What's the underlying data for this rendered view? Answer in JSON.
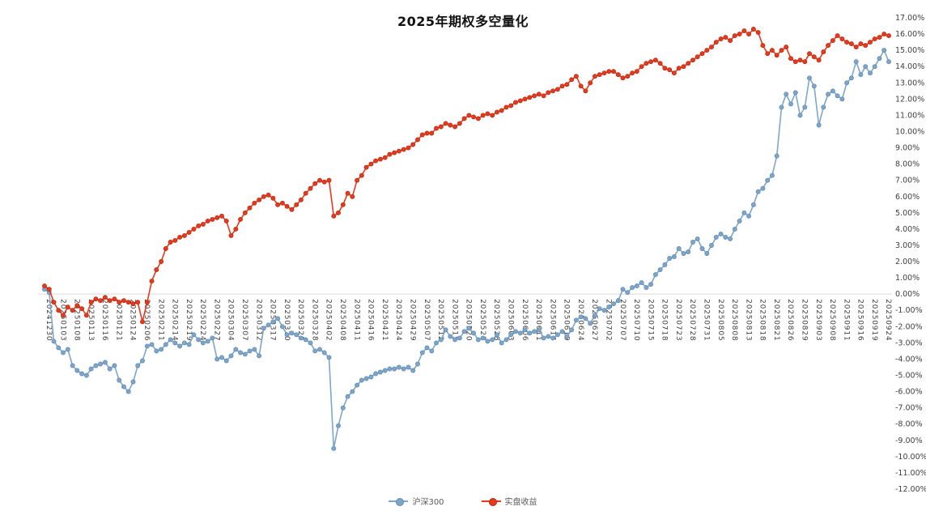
{
  "colors": {
    "background": "#ffffff",
    "title_text": "#111111",
    "axis_text": "#404040",
    "zero_line": "#d9d9d9",
    "legend_text": "#595959",
    "csi300_line": "#7ea6cb",
    "csi300_marker_stroke": "#5e87ac",
    "strategy_line": "#e8391d",
    "strategy_marker_stroke": "#b22a10"
  },
  "y_axis": {
    "labels": [
      "17.00%",
      "16.00%",
      "15.00%",
      "14.00%",
      "13.00%",
      "12.00%",
      "11.00%",
      "10.00%",
      "9.00%",
      "8.00%",
      "7.00%",
      "6.00%",
      "5.00%",
      "4.00%",
      "3.00%",
      "2.00%",
      "1.00%",
      "0.00%",
      "-1.00%",
      "-2.00%",
      "-3.00%",
      "-4.00%",
      "-5.00%",
      "-6.00%",
      "-7.00%",
      "-8.00%",
      "-9.00%",
      "-10.00%",
      "-11.00%",
      "-12.00%"
    ]
  },
  "chart_data": {
    "type": "line",
    "title": "2025年期权多空量化",
    "ylim": [
      -12,
      17
    ],
    "y_tick_step": 1,
    "x_label_interval": 3,
    "legend_position": "bottom",
    "grid": false,
    "x": [
      "20241230",
      "20241231",
      "20250102",
      "20250103",
      "20250106",
      "20250107",
      "20250108",
      "20250109",
      "20250110",
      "20250113",
      "20250114",
      "20250115",
      "20250116",
      "20250117",
      "20250120",
      "20250121",
      "20250122",
      "20250123",
      "20250124",
      "20250127",
      "20250205",
      "20250206",
      "20250207",
      "20250210",
      "20250211",
      "20250212",
      "20250213",
      "20250214",
      "20250217",
      "20250218",
      "20250219",
      "20250220",
      "20250221",
      "20250224",
      "20250225",
      "20250226",
      "20250227",
      "20250228",
      "20250303",
      "20250304",
      "20250305",
      "20250306",
      "20250307",
      "20250310",
      "20250311",
      "20250312",
      "20250313",
      "20250314",
      "20250317",
      "20250318",
      "20250319",
      "20250320",
      "20250321",
      "20250324",
      "20250325",
      "20250326",
      "20250327",
      "20250328",
      "20250331",
      "20250401",
      "20250402",
      "20250403",
      "20250407",
      "20250408",
      "20250409",
      "20250410",
      "20250411",
      "20250414",
      "20250415",
      "20250416",
      "20250417",
      "20250418",
      "20250421",
      "20250422",
      "20250423",
      "20250424",
      "20250425",
      "20250428",
      "20250429",
      "20250430",
      "20250506",
      "20250507",
      "20250508",
      "20250509",
      "20250512",
      "20250513",
      "20250514",
      "20250515",
      "20250516",
      "20250519",
      "20250520",
      "20250521",
      "20250522",
      "20250523",
      "20250526",
      "20250527",
      "20250528",
      "20250529",
      "20250530",
      "20250603",
      "20250604",
      "20250605",
      "20250606",
      "20250609",
      "20250610",
      "20250611",
      "20250612",
      "20250613",
      "20250616",
      "20250617",
      "20250618",
      "20250619",
      "20250620",
      "20250623",
      "20250624",
      "20250625",
      "20250626",
      "20250627",
      "20250630",
      "20250701",
      "20250702",
      "20250703",
      "20250704",
      "20250707",
      "20250708",
      "20250709",
      "20250710",
      "20250711",
      "20250714",
      "20250715",
      "20250716",
      "20250717",
      "20250718",
      "20250721",
      "20250722",
      "20250723",
      "20250724",
      "20250725",
      "20250728",
      "20250729",
      "20250730",
      "20250731",
      "20250801",
      "20250804",
      "20250805",
      "20250806",
      "20250807",
      "20250808",
      "20250811",
      "20250812",
      "20250813",
      "20250814",
      "20250815",
      "20250818",
      "20250819",
      "20250820",
      "20250821",
      "20250822",
      "20250825",
      "20250826",
      "20250827",
      "20250828",
      "20250829",
      "20250901",
      "20250902",
      "20250903",
      "20250904",
      "20250905",
      "20250908",
      "20250909",
      "20250910",
      "20250911",
      "20250912",
      "20250915",
      "20250916",
      "20250917",
      "20250918",
      "20250919",
      "20250922",
      "20250923",
      "20250924",
      "20250925"
    ],
    "series": [
      {
        "name": "沪深300",
        "color": "#7ea6cb",
        "marker_stroke": "#5e87ac",
        "values": [
          0.3,
          0.1,
          -2.9,
          -3.3,
          -3.6,
          -3.4,
          -4.4,
          -4.7,
          -4.9,
          -5.0,
          -4.6,
          -4.4,
          -4.3,
          -4.2,
          -4.6,
          -4.4,
          -5.3,
          -5.7,
          -6.0,
          -5.4,
          -4.4,
          -4.1,
          -3.2,
          -3.1,
          -3.5,
          -3.4,
          -3.1,
          -2.8,
          -3.0,
          -3.2,
          -3.0,
          -3.1,
          -2.5,
          -2.8,
          -3.0,
          -2.9,
          -2.7,
          -4.0,
          -3.9,
          -4.1,
          -3.8,
          -3.4,
          -3.6,
          -3.7,
          -3.5,
          -3.4,
          -3.8,
          -2.1,
          -1.9,
          -1.7,
          -1.5,
          -2.0,
          -2.5,
          -2.4,
          -2.5,
          -2.7,
          -2.8,
          -3.0,
          -3.5,
          -3.4,
          -3.6,
          -3.9,
          -9.5,
          -8.1,
          -7.0,
          -6.3,
          -6.0,
          -5.6,
          -5.3,
          -5.2,
          -5.1,
          -4.9,
          -4.8,
          -4.7,
          -4.6,
          -4.6,
          -4.5,
          -4.6,
          -4.5,
          -4.7,
          -4.3,
          -3.6,
          -3.3,
          -3.5,
          -3.0,
          -2.8,
          -2.2,
          -2.6,
          -2.8,
          -2.7,
          -2.3,
          -2.1,
          -2.4,
          -2.8,
          -2.7,
          -2.9,
          -2.8,
          -2.5,
          -3.0,
          -2.8,
          -2.5,
          -2.3,
          -2.4,
          -2.2,
          -2.4,
          -2.3,
          -2.2,
          -2.7,
          -2.6,
          -2.7,
          -2.5,
          -2.3,
          -2.6,
          -2.2,
          -1.6,
          -1.4,
          -1.5,
          -1.8,
          -1.3,
          -0.9,
          -1.0,
          -0.8,
          -0.6,
          -0.4,
          0.3,
          0.1,
          0.4,
          0.5,
          0.7,
          0.4,
          0.6,
          1.2,
          1.5,
          1.8,
          2.2,
          2.3,
          2.8,
          2.5,
          2.6,
          3.2,
          3.4,
          2.8,
          2.5,
          3.0,
          3.5,
          3.7,
          3.5,
          3.4,
          4.0,
          4.5,
          5.0,
          4.8,
          5.5,
          6.3,
          6.5,
          7.0,
          7.3,
          8.5,
          11.5,
          12.3,
          11.7,
          12.4,
          11.0,
          11.5,
          13.3,
          12.8,
          10.4,
          11.5,
          12.3,
          12.5,
          12.2,
          12.0,
          13.0,
          13.3,
          14.3,
          13.5,
          14.0,
          13.6,
          14.0,
          14.5,
          15.0,
          14.3
        ]
      },
      {
        "name": "实盘收益",
        "color": "#e8391d",
        "marker_stroke": "#b22a10",
        "values": [
          0.5,
          0.3,
          -0.5,
          -1.0,
          -1.3,
          -0.8,
          -1.0,
          -0.7,
          -0.9,
          -1.3,
          -0.5,
          -0.3,
          -0.4,
          -0.2,
          -0.4,
          -0.3,
          -0.5,
          -0.4,
          -0.5,
          -0.6,
          -0.5,
          -1.7,
          -0.5,
          0.8,
          1.5,
          2.0,
          2.8,
          3.2,
          3.3,
          3.5,
          3.6,
          3.8,
          4.0,
          4.2,
          4.3,
          4.5,
          4.6,
          4.7,
          4.8,
          4.5,
          3.6,
          4.0,
          4.6,
          5.0,
          5.3,
          5.6,
          5.8,
          6.0,
          6.1,
          5.9,
          5.5,
          5.6,
          5.4,
          5.2,
          5.5,
          5.8,
          6.2,
          6.5,
          6.8,
          7.0,
          6.9,
          7.0,
          4.8,
          5.0,
          5.5,
          6.2,
          6.0,
          7.0,
          7.3,
          7.8,
          8.0,
          8.2,
          8.3,
          8.4,
          8.6,
          8.7,
          8.8,
          8.9,
          9.0,
          9.2,
          9.5,
          9.8,
          9.9,
          9.9,
          10.2,
          10.3,
          10.5,
          10.4,
          10.3,
          10.5,
          10.8,
          11.0,
          10.9,
          10.8,
          11.0,
          11.1,
          11.0,
          11.2,
          11.3,
          11.5,
          11.6,
          11.8,
          11.9,
          12.0,
          12.1,
          12.2,
          12.3,
          12.2,
          12.4,
          12.5,
          12.6,
          12.8,
          12.9,
          13.2,
          13.4,
          12.8,
          12.5,
          13.0,
          13.4,
          13.5,
          13.6,
          13.7,
          13.7,
          13.5,
          13.3,
          13.4,
          13.6,
          13.7,
          14.0,
          14.2,
          14.3,
          14.4,
          14.2,
          13.9,
          13.8,
          13.6,
          13.9,
          14.0,
          14.2,
          14.4,
          14.6,
          14.8,
          15.0,
          15.2,
          15.5,
          15.7,
          15.8,
          15.6,
          15.9,
          16.0,
          16.2,
          16.0,
          16.3,
          16.1,
          15.3,
          14.8,
          15.0,
          14.7,
          15.0,
          15.2,
          14.5,
          14.3,
          14.4,
          14.3,
          14.8,
          14.6,
          14.4,
          14.9,
          15.3,
          15.6,
          15.9,
          15.7,
          15.5,
          15.4,
          15.2,
          15.4,
          15.3,
          15.5,
          15.7,
          15.8,
          16.0,
          15.9
        ]
      }
    ]
  }
}
